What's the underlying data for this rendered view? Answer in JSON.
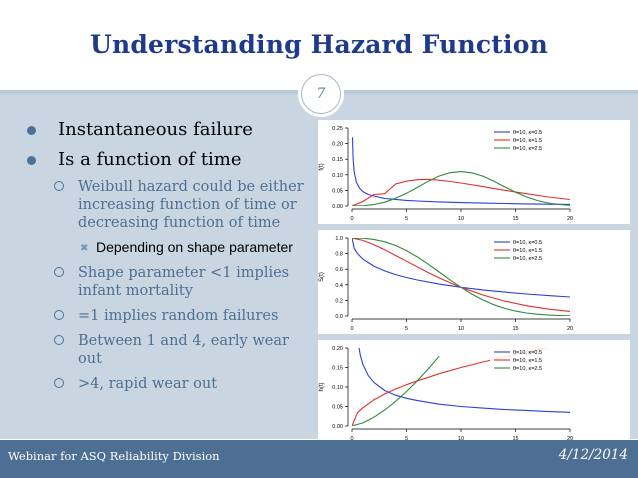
{
  "slide": {
    "title": "Understanding Hazard Function",
    "page_number": "7",
    "footer_left": "Webinar for ASQ Reliability Division",
    "footer_right": "4/12/2014",
    "colors": {
      "title": "#1f3a8c",
      "content_bg": "#c9d6e1",
      "footer_bar": "#4d6f93",
      "bullet": "#4d7298"
    }
  },
  "bullets": [
    {
      "text": "Instantaneous failure"
    },
    {
      "text": "Is a function of time"
    }
  ],
  "sub_bullets": [
    {
      "text": "Weibull hazard could be either increasing function of time or decreasing function of time"
    },
    {
      "text": "Shape parameter <1 implies infant mortality"
    },
    {
      "text": "=1 implies random failures"
    },
    {
      "text": "Between 1 and 4, early wear out"
    },
    {
      "text": ">4, rapid wear out"
    }
  ],
  "sub_sub_bullets": [
    {
      "text": "Depending on shape parameter"
    }
  ],
  "chart_data": [
    {
      "type": "line",
      "ylabel": "f(t)",
      "xlim": [
        0,
        20
      ],
      "ylim": [
        0,
        0.25
      ],
      "x_ticks": [
        "0",
        "5",
        "10",
        "15",
        "20"
      ],
      "y_ticks": [
        "0.00",
        "0.05",
        "0.10",
        "0.15",
        "0.20",
        "0.25"
      ],
      "legend_position": "top-right",
      "series": [
        {
          "name": "θ=10, κ=0.5",
          "color": "#2a3fd6",
          "x": [
            0.05,
            0.1,
            0.2,
            0.4,
            0.7,
            1,
            1.5,
            2,
            3,
            4,
            5,
            6,
            8,
            10,
            12,
            14,
            16,
            18,
            20
          ],
          "y": [
            0.22,
            0.154,
            0.109,
            0.076,
            0.057,
            0.046,
            0.037,
            0.032,
            0.024,
            0.021,
            0.018,
            0.016,
            0.013,
            0.011,
            0.0093,
            0.0079,
            0.0068,
            0.0059,
            0.0051
          ]
        },
        {
          "name": "θ=10, κ=1.5",
          "color": "#e03030",
          "x": [
            0,
            1,
            2,
            3,
            4,
            5,
            6,
            7,
            8,
            9,
            10,
            12,
            14,
            16,
            18,
            20
          ],
          "y": [
            0,
            0.0145,
            0.0367,
            0.0395,
            0.0706,
            0.0795,
            0.0843,
            0.0857,
            0.0826,
            0.0785,
            0.0736,
            0.0623,
            0.0503,
            0.0393,
            0.0288,
            0.0209
          ]
        },
        {
          "name": "θ=10, κ=2.5",
          "color": "#2e8b3a",
          "x": [
            0,
            1,
            2,
            3,
            4,
            5,
            6,
            7,
            8,
            9,
            10,
            11,
            12,
            13,
            14,
            15,
            16,
            17,
            18,
            19,
            20
          ],
          "y": [
            0,
            0.0008,
            0.0045,
            0.0122,
            0.0246,
            0.0408,
            0.0597,
            0.0794,
            0.0963,
            0.1066,
            0.1104,
            0.1065,
            0.0957,
            0.0799,
            0.0619,
            0.0443,
            0.0292,
            0.0176,
            0.0096,
            0.0047,
            0.0021
          ]
        }
      ]
    },
    {
      "type": "line",
      "ylabel": "S(t)",
      "xlim": [
        0,
        20
      ],
      "ylim": [
        0,
        1
      ],
      "x_ticks": [
        "0",
        "5",
        "10",
        "15",
        "20"
      ],
      "y_ticks": [
        "0.0",
        "0.2",
        "0.4",
        "0.6",
        "0.8",
        "1.0"
      ],
      "legend_position": "top-right",
      "series": [
        {
          "name": "θ=10, κ=0.5",
          "color": "#2a3fd6",
          "x": [
            0,
            0.2,
            0.5,
            1,
            2,
            3,
            4,
            5,
            6,
            8,
            10,
            12,
            14,
            16,
            18,
            20
          ],
          "y": [
            1,
            0.868,
            0.8,
            0.729,
            0.64,
            0.578,
            0.531,
            0.493,
            0.461,
            0.409,
            0.368,
            0.334,
            0.306,
            0.282,
            0.261,
            0.243
          ]
        },
        {
          "name": "θ=10, κ=1.5",
          "color": "#e03030",
          "x": [
            0,
            1,
            2,
            3,
            4,
            5,
            6,
            7,
            8,
            9,
            10,
            12,
            14,
            16,
            18,
            20
          ],
          "y": [
            1,
            0.969,
            0.915,
            0.849,
            0.776,
            0.702,
            0.628,
            0.557,
            0.489,
            0.426,
            0.368,
            0.269,
            0.191,
            0.132,
            0.089,
            0.059
          ]
        },
        {
          "name": "θ=10, κ=2.5",
          "color": "#2e8b3a",
          "x": [
            0,
            1,
            2,
            3,
            4,
            5,
            6,
            7,
            8,
            9,
            10,
            11,
            12,
            13,
            14,
            15,
            16,
            17,
            18,
            19,
            20
          ],
          "y": [
            1,
            0.997,
            0.982,
            0.952,
            0.904,
            0.838,
            0.757,
            0.664,
            0.564,
            0.463,
            0.368,
            0.281,
            0.207,
            0.145,
            0.098,
            0.063,
            0.039,
            0.023,
            0.012,
            0.007,
            0.003
          ]
        }
      ]
    },
    {
      "type": "line",
      "ylabel": "h(t)",
      "xlim": [
        0,
        20
      ],
      "ylim": [
        0,
        0.2
      ],
      "x_ticks": [
        "0",
        "5",
        "10",
        "15",
        "20"
      ],
      "y_ticks": [
        "0.00",
        "0.05",
        "0.10",
        "0.15",
        "0.20"
      ],
      "legend_position": "top-right",
      "series": [
        {
          "name": "θ=10, κ=0.5",
          "color": "#2a3fd6",
          "x": [
            0.3,
            0.5,
            0.75,
            1,
            1.5,
            2,
            3,
            4,
            5,
            6,
            8,
            10,
            12,
            14,
            16,
            18,
            20
          ],
          "y": [
            0.289,
            0.224,
            0.183,
            0.158,
            0.129,
            0.112,
            0.091,
            0.079,
            0.071,
            0.065,
            0.056,
            0.05,
            0.046,
            0.042,
            0.04,
            0.037,
            0.035
          ]
        },
        {
          "name": "θ=10, κ=1.5",
          "color": "#e03030",
          "x": [
            0,
            0.5,
            1,
            2,
            3,
            4,
            5,
            6,
            7,
            8,
            10,
            12,
            14,
            16,
            18,
            20
          ],
          "y": [
            0,
            0.034,
            0.047,
            0.067,
            0.082,
            0.095,
            0.106,
            0.116,
            0.125,
            0.134,
            0.15,
            0.164,
            0.177,
            0.19,
            0.201,
            0.212
          ]
        },
        {
          "name": "θ=10, κ=2.5",
          "color": "#2e8b3a",
          "x": [
            0,
            1,
            2,
            3,
            4,
            5,
            6,
            7,
            8
          ],
          "y": [
            0,
            0.0079,
            0.0224,
            0.0411,
            0.0632,
            0.0884,
            0.1162,
            0.1464,
            0.1789
          ]
        }
      ]
    }
  ]
}
